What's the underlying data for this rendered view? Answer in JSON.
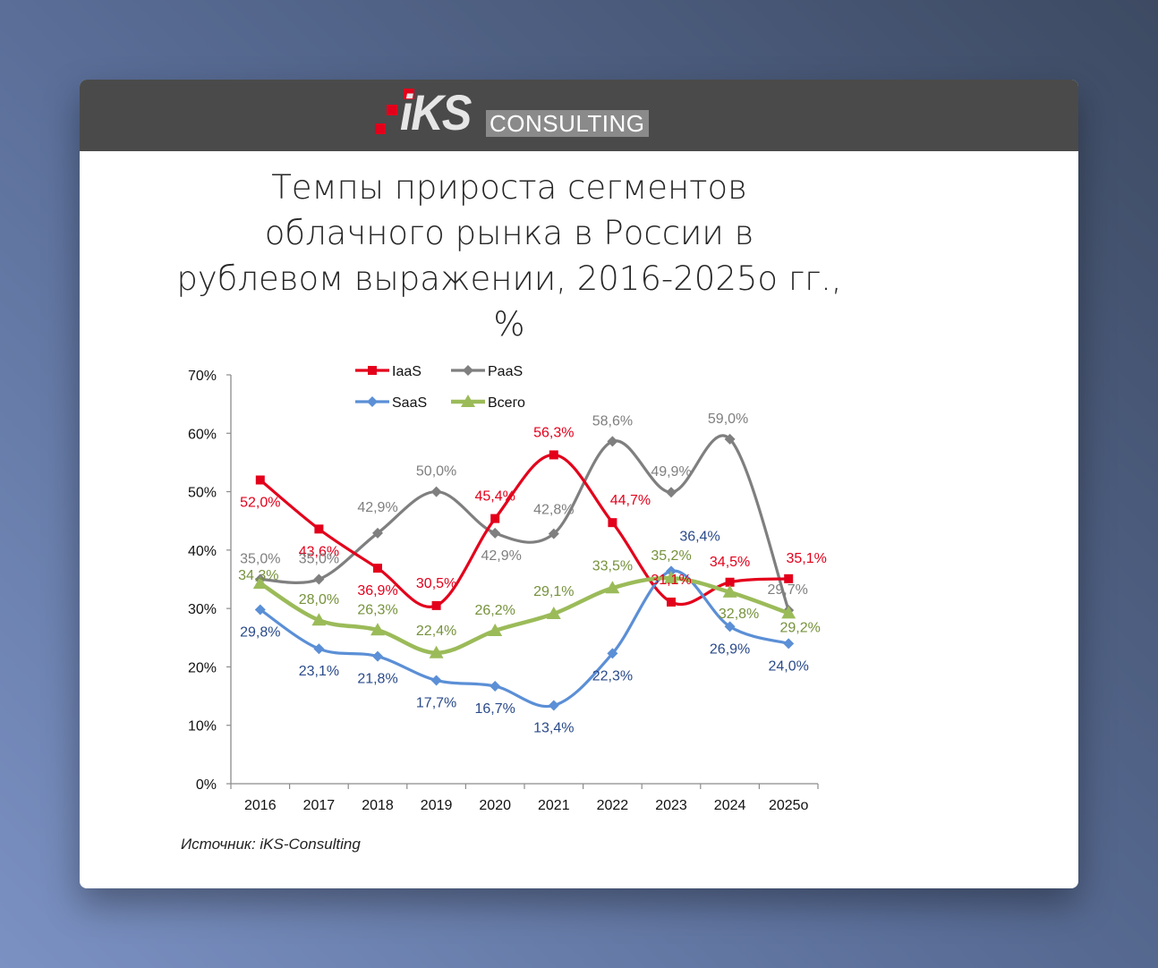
{
  "header": {
    "logo_text_ks": "iKS",
    "logo_text_consulting": "CONSULTING"
  },
  "source_note": "Источник: iKS-Consulting",
  "chart_data": {
    "type": "line",
    "title": "Темпы прироста сегментов облачного рынка в России в рублевом выражении, 2016-2025о гг., %",
    "title_lines": [
      "Темпы прироста сегментов",
      "облачного рынка в России в",
      "рублевом выражении, 2016-2025о гг.,",
      "%"
    ],
    "xlabel": "",
    "ylabel": "",
    "categories": [
      "2016",
      "2017",
      "2018",
      "2019",
      "2020",
      "2021",
      "2022",
      "2023",
      "2024",
      "2025о"
    ],
    "ylim": [
      0,
      70
    ],
    "yticks": [
      0,
      10,
      20,
      30,
      40,
      50,
      60,
      70
    ],
    "ytick_labels": [
      "0%",
      "10%",
      "20%",
      "30%",
      "40%",
      "50%",
      "60%",
      "70%"
    ],
    "grid": false,
    "legend_position": "top",
    "series": [
      {
        "name": "IaaS",
        "color": "#e3001b",
        "marker": "square",
        "values": [
          52.0,
          43.6,
          36.9,
          30.5,
          45.4,
          56.3,
          44.7,
          31.1,
          34.5,
          35.1
        ],
        "labels": [
          "52,0%",
          "43,6%",
          "36,9%",
          "30,5%",
          "45,4%",
          "56,3%",
          "44,7%",
          "31,1%",
          "34,5%",
          "35,1%"
        ]
      },
      {
        "name": "PaaS",
        "color": "#7f7f7f",
        "marker": "diamond",
        "values": [
          35.0,
          35.0,
          42.9,
          50.0,
          42.9,
          42.8,
          58.6,
          49.9,
          59.0,
          29.7
        ],
        "labels": [
          "35,0%",
          "35,0%",
          "42,9%",
          "50,0%",
          "42,9%",
          "42,8%",
          "58,6%",
          "49,9%",
          "59,0%",
          "29,7%"
        ]
      },
      {
        "name": "SaaS",
        "color": "#5b8fd6",
        "label_color": "#2a4a8a",
        "marker": "diamond",
        "values": [
          29.8,
          23.1,
          21.8,
          17.7,
          16.7,
          13.4,
          22.3,
          36.4,
          26.9,
          24.0
        ],
        "labels": [
          "29,8%",
          "23,1%",
          "21,8%",
          "17,7%",
          "16,7%",
          "13,4%",
          "22,3%",
          "36,4%",
          "26,9%",
          "24,0%"
        ]
      },
      {
        "name": "Всего",
        "color": "#9bbb59",
        "label_color": "#76923c",
        "marker": "triangle",
        "values": [
          34.3,
          28.0,
          26.3,
          22.4,
          26.2,
          29.1,
          33.5,
          35.2,
          32.8,
          29.2
        ],
        "labels": [
          "34,3%",
          "28,0%",
          "26,3%",
          "22,4%",
          "26,2%",
          "29,1%",
          "33,5%",
          "35,2%",
          "32,8%",
          "29,2%"
        ]
      }
    ]
  }
}
